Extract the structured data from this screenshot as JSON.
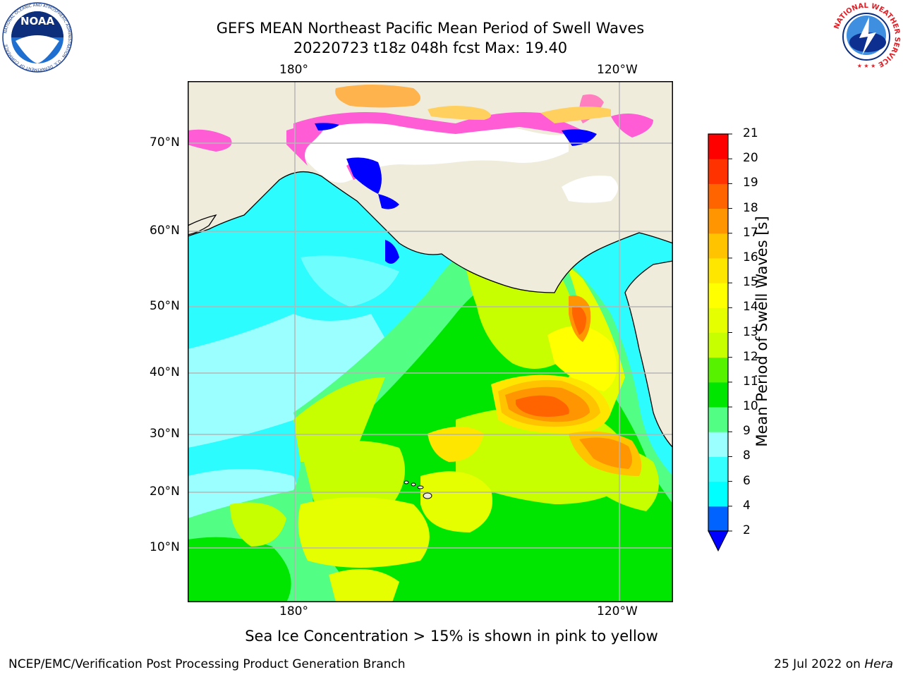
{
  "header": {
    "title_line1": "GEFS MEAN Northeast Pacific Mean Period of Swell Waves",
    "title_line2": "20220723 t18z 048h fcst   Max: 19.40"
  },
  "logos": {
    "left": {
      "text": "NOAA",
      "ring_text": "NATIONAL OCEANIC AND ATMOSPHERIC ADMINISTRATION · U.S. DEPARTMENT OF COMMERCE"
    },
    "right": {
      "ring_text": "NATIONAL WEATHER SERVICE"
    }
  },
  "map": {
    "lon_labels_top": [
      "180°",
      "120°W"
    ],
    "lon_labels_bottom": [
      "180°",
      "120°W"
    ],
    "lat_labels": [
      "70°N",
      "60°N",
      "50°N",
      "40°N",
      "30°N",
      "20°N",
      "10°N"
    ],
    "colors": {
      "land": "#efecdc",
      "ocean_base": "#2cfcfd",
      "grid": "#b5b5b5"
    }
  },
  "colorbar": {
    "title": "Mean Period of Swell Waves [s]",
    "levels": [
      "2",
      "4",
      "6",
      "8",
      "9",
      "10",
      "11",
      "12",
      "13",
      "14",
      "15",
      "16",
      "17",
      "18",
      "19",
      "20",
      "21"
    ],
    "colors": [
      "#0063ff",
      "#00ffff",
      "#36ffff",
      "#9cffff",
      "#52ff84",
      "#00e600",
      "#57f200",
      "#c7ff00",
      "#e6ff00",
      "#ffff00",
      "#ffe600",
      "#ffc300",
      "#ff9500",
      "#ff6400",
      "#ff3200",
      "#ff0000"
    ],
    "extend_color": "#0000ff"
  },
  "caption": "Sea Ice Concentration > 15% is shown in pink to yellow",
  "footer": {
    "left": "NCEP/EMC/Verification Post Processing Product Generation Branch",
    "right_prefix": "25 Jul 2022 on ",
    "right_host": "Hera"
  }
}
